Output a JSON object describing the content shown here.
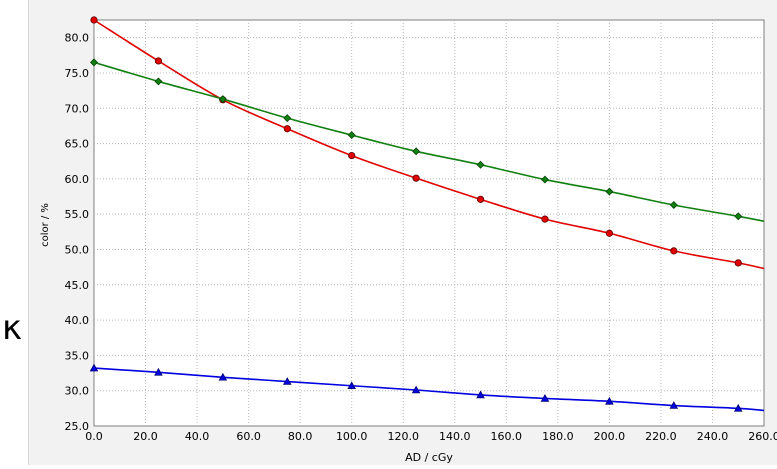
{
  "chart_data": {
    "type": "line",
    "title": "",
    "xlabel": "AD / cGy",
    "ylabel": "color / %",
    "xlim": [
      0,
      260
    ],
    "ylim": [
      25,
      82.5
    ],
    "x_ticks": [
      "0.0",
      "20.0",
      "40.0",
      "60.0",
      "80.0",
      "100.0",
      "120.0",
      "140.0",
      "160.0",
      "180.0",
      "200.0",
      "220.0",
      "240.0",
      "260.0"
    ],
    "y_ticks": [
      "25.0",
      "30.0",
      "35.0",
      "40.0",
      "45.0",
      "50.0",
      "55.0",
      "60.0",
      "65.0",
      "70.0",
      "75.0",
      "80.0"
    ],
    "grid": true,
    "series": [
      {
        "color": "#e00000",
        "marker": "circle",
        "x": [
          0,
          25,
          50,
          75,
          100,
          125,
          150,
          175,
          200,
          225,
          250
        ],
        "y": [
          82.5,
          76.7,
          71.2,
          67.1,
          63.3,
          60.1,
          57.1,
          54.3,
          52.3,
          49.8,
          48.1
        ],
        "curve_end": 47.3
      },
      {
        "color": "#108010",
        "marker": "diamond",
        "x": [
          0,
          25,
          50,
          75,
          100,
          125,
          150,
          175,
          200,
          225,
          250
        ],
        "y": [
          76.5,
          73.8,
          71.3,
          68.6,
          66.2,
          63.9,
          62.0,
          59.9,
          58.2,
          56.3,
          54.7
        ],
        "curve_end": 54.0
      },
      {
        "color": "#0000e0",
        "marker": "triangle",
        "x": [
          0,
          25,
          50,
          75,
          100,
          125,
          150,
          175,
          200,
          225,
          250
        ],
        "y": [
          33.2,
          32.6,
          31.9,
          31.3,
          30.7,
          30.1,
          29.4,
          28.9,
          28.5,
          27.9,
          27.5
        ],
        "curve_end": 27.2
      }
    ]
  },
  "stray_glyph": "κ"
}
